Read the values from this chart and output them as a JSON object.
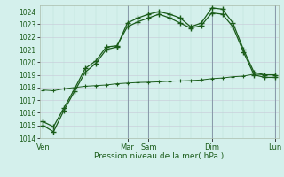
{
  "xlabel": "Pression niveau de la mer( hPa )",
  "bg_color": "#d4f0ec",
  "line_color": "#1a5c1a",
  "ylim": [
    1014,
    1024.5
  ],
  "yticks": [
    1014,
    1015,
    1016,
    1017,
    1018,
    1019,
    1020,
    1021,
    1022,
    1023,
    1024
  ],
  "day_labels": [
    "Ven",
    "",
    "Mar",
    "Sam",
    "",
    "Dim",
    "",
    "Lun"
  ],
  "day_line_positions": [
    0,
    8,
    10,
    16,
    22
  ],
  "day_tick_labels": [
    "Ven",
    "Mar",
    "Sam",
    "Dim",
    "Lun"
  ],
  "day_tick_positions": [
    0,
    8,
    10,
    16,
    22
  ],
  "line1_x": [
    0,
    1,
    2,
    3,
    4,
    5,
    6,
    7,
    8,
    9,
    10,
    11,
    12,
    13,
    14,
    15,
    16,
    17,
    18,
    19,
    20,
    21,
    22
  ],
  "line1_y": [
    1015.0,
    1014.5,
    1016.2,
    1017.7,
    1019.2,
    1019.9,
    1021.0,
    1021.2,
    1023.1,
    1023.5,
    1023.8,
    1024.0,
    1023.8,
    1023.5,
    1022.8,
    1023.1,
    1024.3,
    1024.2,
    1023.1,
    1021.0,
    1019.2,
    1019.0,
    1019.0
  ],
  "line2_x": [
    0,
    1,
    2,
    3,
    4,
    5,
    6,
    7,
    8,
    9,
    10,
    11,
    12,
    13,
    14,
    15,
    16,
    17,
    18,
    19,
    20,
    21,
    22
  ],
  "line2_y": [
    1015.3,
    1014.9,
    1016.4,
    1017.9,
    1019.5,
    1020.1,
    1021.2,
    1021.3,
    1022.8,
    1023.2,
    1023.5,
    1023.8,
    1023.5,
    1023.1,
    1022.7,
    1022.9,
    1023.9,
    1023.8,
    1022.8,
    1020.8,
    1019.0,
    1018.8,
    1018.8
  ],
  "line3_x": [
    0,
    1,
    2,
    3,
    4,
    5,
    6,
    7,
    8,
    9,
    10,
    11,
    12,
    13,
    14,
    15,
    16,
    17,
    18,
    19,
    20,
    21,
    22
  ],
  "line3_y": [
    1017.8,
    1017.75,
    1017.9,
    1018.0,
    1018.1,
    1018.15,
    1018.2,
    1018.3,
    1018.35,
    1018.4,
    1018.42,
    1018.45,
    1018.5,
    1018.52,
    1018.55,
    1018.6,
    1018.7,
    1018.75,
    1018.85,
    1018.9,
    1019.05,
    1019.0,
    1019.0
  ]
}
